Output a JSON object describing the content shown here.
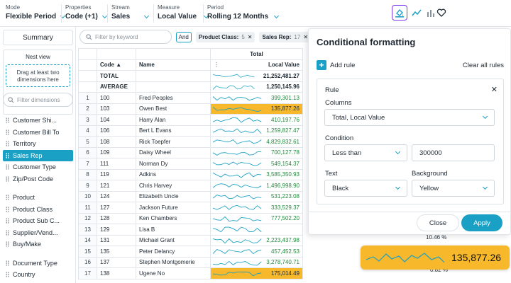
{
  "toolbar": {
    "mode": {
      "label": "Mode",
      "value": "Flexible Period"
    },
    "properties": {
      "label": "Properties",
      "value": "Code  (+1)"
    },
    "stream": {
      "label": "Stream",
      "value": "Sales"
    },
    "measure": {
      "label": "Measure",
      "value": "Local Value"
    },
    "period": {
      "label": "Period",
      "value": "Rolling 12 Months"
    },
    "icons": [
      "conditional-format-icon",
      "line-chart-icon",
      "bar-chart-icon",
      "heart-icon"
    ]
  },
  "left": {
    "summary": "Summary",
    "nest_view": "Nest view",
    "drop_hint": "Drag at least two dimensions here",
    "filter_placeholder": "Filter dimensions",
    "dimensions": [
      "Customer Shi...",
      "Customer Bill To",
      "Territory",
      "Sales Rep",
      "Customer Type",
      "Zip/Post Code",
      "",
      "Product",
      "Product Class",
      "Product Sub C...",
      "Supplier/Vend...",
      "Buy/Make",
      "",
      "Document Type",
      "Country"
    ],
    "selected": "Sales Rep"
  },
  "filterbar": {
    "keyword_placeholder": "Filter by keyword",
    "and": "And",
    "chips": [
      {
        "label": "Product Class:",
        "count": "5"
      },
      {
        "label": "Sales Rep:",
        "count": "17"
      }
    ]
  },
  "grid": {
    "headers": {
      "code": "Code",
      "name": "Name",
      "total": "Total",
      "local_value": "Local Value"
    },
    "total_row": {
      "label": "TOTAL",
      "value": "21,252,481.27"
    },
    "average_row": {
      "label": "AVERAGE",
      "value": "1,250,145.96"
    },
    "rows": [
      {
        "n": "1",
        "code": "100",
        "name": "Fred Peoples",
        "value": "399,301.13",
        "hl": false
      },
      {
        "n": "2",
        "code": "103",
        "name": "Owen Best",
        "value": "135,877.26",
        "hl": true
      },
      {
        "n": "3",
        "code": "104",
        "name": "Harry Alan",
        "value": "410,197.76",
        "hl": false
      },
      {
        "n": "4",
        "code": "106",
        "name": "Bert L Evans",
        "value": "1,259,827.47",
        "hl": false
      },
      {
        "n": "5",
        "code": "108",
        "name": "Rick Toepfer",
        "value": "4,829,832.61",
        "hl": false
      },
      {
        "n": "6",
        "code": "109",
        "name": "Daisy Wheel",
        "value": "700,127.78",
        "hl": false
      },
      {
        "n": "7",
        "code": "111",
        "name": "Norman Dy",
        "value": "549,154.37",
        "hl": false
      },
      {
        "n": "8",
        "code": "119",
        "name": "Adkins",
        "value": "3,585,350.93",
        "hl": false
      },
      {
        "n": "9",
        "code": "121",
        "name": "Chris Harvey",
        "value": "1,496,998.90",
        "hl": false
      },
      {
        "n": "10",
        "code": "124",
        "name": "Elizabeth Uncle",
        "value": "531,223.08",
        "hl": false
      },
      {
        "n": "11",
        "code": "127",
        "name": "Jackson Future",
        "value": "333,529.37",
        "hl": false
      },
      {
        "n": "12",
        "code": "128",
        "name": "Ken Chambers",
        "value": "777,502.20",
        "hl": false
      },
      {
        "n": "13",
        "code": "129",
        "name": "Lisa B",
        "value": "",
        "hl": false
      },
      {
        "n": "14",
        "code": "131",
        "name": "Michael Grant",
        "value": "2,223,437.98",
        "hl": false
      },
      {
        "n": "15",
        "code": "135",
        "name": "Peter Delancy",
        "value": "457,452.53",
        "hl": false
      },
      {
        "n": "16",
        "code": "137",
        "name": "Stephen Montgomerie",
        "value": "3,278,740.71",
        "hl": false
      },
      {
        "n": "17",
        "code": "138",
        "name": "Ugene No",
        "value": "175,014.49",
        "hl": true
      }
    ],
    "pct_a": "10.46 %",
    "pct_b": "0.82 %"
  },
  "panel": {
    "title": "Conditional formatting",
    "add_rule": "Add rule",
    "clear_all": "Clear all rules",
    "rule": "Rule",
    "columns_label": "Columns",
    "columns_value": "Total, Local Value",
    "condition_label": "Condition",
    "condition_op": "Less than",
    "condition_value": "300000",
    "text_label": "Text",
    "text_value": "Black",
    "background_label": "Background",
    "background_value": "Yellow",
    "close": "Close",
    "apply": "Apply"
  },
  "callout": {
    "value": "135,877.26"
  },
  "colors": {
    "accent": "#1aa0c4",
    "highlight": "#f7b92b",
    "positive": "#1f8a3a",
    "active_border": "#7c3aed"
  }
}
